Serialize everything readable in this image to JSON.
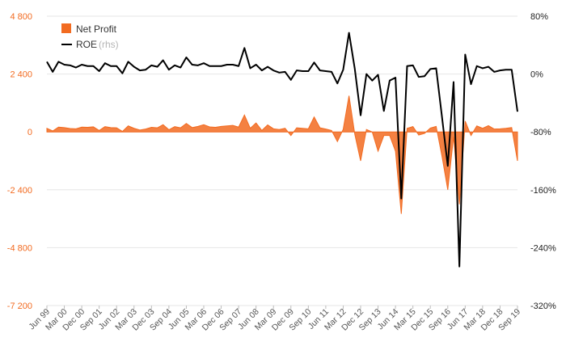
{
  "chart_data": {
    "type": "area+line",
    "colors": {
      "net_profit": "#f26b21",
      "roe": "#000000",
      "grid": "#e6e6e6",
      "left_axis_text": "#f26b21"
    },
    "left_axis": {
      "ylim": [
        -7200,
        4800
      ],
      "ticks": [
        4800,
        2400,
        0,
        -2400,
        -4800,
        -7200
      ],
      "tick_labels": [
        "4 800",
        "2 400",
        "0",
        "-2 400",
        "-4 800",
        "-7 200"
      ]
    },
    "right_axis": {
      "ylim": [
        -320,
        80
      ],
      "ticks": [
        80,
        0,
        -80,
        -160,
        -240,
        -320
      ],
      "tick_labels": [
        "80%",
        "0%",
        "-80%",
        "-160%",
        "-240%",
        "-320%"
      ]
    },
    "x_tick_labels": [
      "Jun 99",
      "Mar 00",
      "Dec 00",
      "Sep 01",
      "Jun 02",
      "Mar 03",
      "Dec 03",
      "Sep 04",
      "Jun 05",
      "Mar 06",
      "Dec 06",
      "Sep 07",
      "Jun 08",
      "Mar 09",
      "Dec 09",
      "Sep 10",
      "Jun 11",
      "Mar 12",
      "Dec 12",
      "Sep 13",
      "Jun 14",
      "Mar 15",
      "Dec 15",
      "Sep 16",
      "Jun 17",
      "Mar 18",
      "Dec 18",
      "Sep 19"
    ],
    "legend": {
      "position": "top-left",
      "items": [
        {
          "label": "Net Profit",
          "suffix": ""
        },
        {
          "label": "ROE",
          "suffix": "(rhs)"
        }
      ]
    },
    "grid": "horizontal",
    "series": [
      {
        "name": "Net Profit",
        "axis": "left",
        "type": "area",
        "values": [
          150,
          40,
          200,
          180,
          140,
          130,
          200,
          190,
          210,
          60,
          220,
          180,
          170,
          20,
          250,
          150,
          80,
          120,
          190,
          170,
          300,
          90,
          220,
          170,
          350,
          180,
          230,
          300,
          210,
          190,
          230,
          250,
          270,
          200,
          700,
          150,
          370,
          60,
          290,
          130,
          100,
          150,
          -150,
          170,
          150,
          130,
          620,
          170,
          120,
          60,
          -400,
          110,
          1500,
          -100,
          -1200,
          100,
          0,
          -800,
          -150,
          -150,
          -800,
          -3400,
          150,
          220,
          -130,
          -60,
          160,
          230,
          -1000,
          -2400,
          -200,
          -3000,
          450,
          -150,
          250,
          150,
          260,
          120,
          130,
          150,
          180,
          -1200
        ]
      },
      {
        "name": "ROE",
        "axis": "right",
        "type": "line",
        "values": [
          17,
          3,
          17,
          13,
          12,
          9,
          13,
          11,
          11,
          4,
          15,
          11,
          11,
          1,
          17,
          10,
          5,
          6,
          12,
          10,
          19,
          6,
          12,
          9,
          23,
          13,
          12,
          15,
          11,
          11,
          11,
          13,
          13,
          11,
          36,
          8,
          13,
          5,
          10,
          5,
          2,
          3,
          -8,
          5,
          4,
          4,
          16,
          5,
          4,
          3,
          -13,
          6,
          57,
          7,
          -57,
          0,
          -9,
          -1,
          -51,
          -9,
          -5,
          -172,
          11,
          12,
          -4,
          -3,
          7,
          8,
          -59,
          -127,
          -11,
          -266,
          27,
          -14,
          11,
          8,
          10,
          3,
          5,
          6,
          6,
          -52
        ]
      }
    ]
  }
}
